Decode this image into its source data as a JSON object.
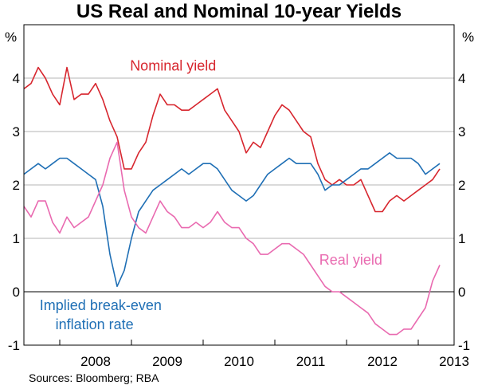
{
  "chart_data": {
    "type": "line",
    "title": "US Real and Nominal 10-year Yields",
    "ylabel_left": "%",
    "ylabel_right": "%",
    "ylim": [
      -1,
      5
    ],
    "yticks": [
      "4",
      "3",
      "2",
      "1",
      "0",
      "-1"
    ],
    "xlim": [
      2007.5,
      2013.5
    ],
    "xticks": [
      "2008",
      "2009",
      "2010",
      "2011",
      "2012",
      "2013"
    ],
    "source": "Sources: Bloomberg; RBA",
    "series": [
      {
        "name": "Nominal yield",
        "label": "Nominal yield",
        "color": "#d7262e",
        "x": [
          2007.5,
          2007.6,
          2007.7,
          2007.8,
          2007.9,
          2008.0,
          2008.1,
          2008.2,
          2008.3,
          2008.4,
          2008.5,
          2008.6,
          2008.7,
          2008.8,
          2008.9,
          2009.0,
          2009.1,
          2009.2,
          2009.3,
          2009.4,
          2009.5,
          2009.6,
          2009.7,
          2009.8,
          2009.9,
          2010.0,
          2010.1,
          2010.2,
          2010.3,
          2010.4,
          2010.5,
          2010.6,
          2010.7,
          2010.8,
          2010.9,
          2011.0,
          2011.1,
          2011.2,
          2011.3,
          2011.4,
          2011.5,
          2011.6,
          2011.7,
          2011.8,
          2011.9,
          2012.0,
          2012.1,
          2012.2,
          2012.3,
          2012.4,
          2012.5,
          2012.6,
          2012.7,
          2012.8,
          2012.9,
          2013.0,
          2013.1,
          2013.2,
          2013.3
        ],
        "values": [
          3.8,
          3.9,
          4.2,
          4.0,
          3.7,
          3.5,
          4.2,
          3.6,
          3.7,
          3.7,
          3.9,
          3.6,
          3.2,
          2.9,
          2.3,
          2.3,
          2.6,
          2.8,
          3.3,
          3.7,
          3.5,
          3.5,
          3.4,
          3.4,
          3.5,
          3.6,
          3.7,
          3.8,
          3.4,
          3.2,
          3.0,
          2.6,
          2.8,
          2.7,
          3.0,
          3.3,
          3.5,
          3.4,
          3.2,
          3.0,
          2.9,
          2.4,
          2.1,
          2.0,
          2.1,
          2.0,
          2.0,
          2.1,
          1.8,
          1.5,
          1.5,
          1.7,
          1.8,
          1.7,
          1.8,
          1.9,
          2.0,
          2.1,
          2.3
        ]
      },
      {
        "name": "Implied break-even inflation rate",
        "label": "Implied break-even",
        "label2": "inflation rate",
        "color": "#1f6fb5",
        "x": [
          2007.5,
          2007.6,
          2007.7,
          2007.8,
          2007.9,
          2008.0,
          2008.1,
          2008.2,
          2008.3,
          2008.4,
          2008.5,
          2008.6,
          2008.7,
          2008.8,
          2008.9,
          2009.0,
          2009.1,
          2009.2,
          2009.3,
          2009.4,
          2009.5,
          2009.6,
          2009.7,
          2009.8,
          2009.9,
          2010.0,
          2010.1,
          2010.2,
          2010.3,
          2010.4,
          2010.5,
          2010.6,
          2010.7,
          2010.8,
          2010.9,
          2011.0,
          2011.1,
          2011.2,
          2011.3,
          2011.4,
          2011.5,
          2011.6,
          2011.7,
          2011.8,
          2011.9,
          2012.0,
          2012.1,
          2012.2,
          2012.3,
          2012.4,
          2012.5,
          2012.6,
          2012.7,
          2012.8,
          2012.9,
          2013.0,
          2013.1,
          2013.2,
          2013.3
        ],
        "values": [
          2.2,
          2.3,
          2.4,
          2.3,
          2.4,
          2.5,
          2.5,
          2.4,
          2.3,
          2.2,
          2.1,
          1.6,
          0.7,
          0.1,
          0.4,
          1.0,
          1.5,
          1.7,
          1.9,
          2.0,
          2.1,
          2.2,
          2.3,
          2.2,
          2.3,
          2.4,
          2.4,
          2.3,
          2.1,
          1.9,
          1.8,
          1.7,
          1.8,
          2.0,
          2.2,
          2.3,
          2.4,
          2.5,
          2.4,
          2.4,
          2.4,
          2.2,
          1.9,
          2.0,
          2.0,
          2.1,
          2.2,
          2.3,
          2.3,
          2.4,
          2.5,
          2.6,
          2.5,
          2.5,
          2.5,
          2.4,
          2.2,
          2.3,
          2.4
        ]
      },
      {
        "name": "Real yield",
        "label": "Real yield",
        "color": "#e96ab0",
        "x": [
          2007.5,
          2007.6,
          2007.7,
          2007.8,
          2007.9,
          2008.0,
          2008.1,
          2008.2,
          2008.3,
          2008.4,
          2008.5,
          2008.6,
          2008.7,
          2008.8,
          2008.9,
          2009.0,
          2009.1,
          2009.2,
          2009.3,
          2009.4,
          2009.5,
          2009.6,
          2009.7,
          2009.8,
          2009.9,
          2010.0,
          2010.1,
          2010.2,
          2010.3,
          2010.4,
          2010.5,
          2010.6,
          2010.7,
          2010.8,
          2010.9,
          2011.0,
          2011.1,
          2011.2,
          2011.3,
          2011.4,
          2011.5,
          2011.6,
          2011.7,
          2011.8,
          2011.9,
          2012.0,
          2012.1,
          2012.2,
          2012.3,
          2012.4,
          2012.5,
          2012.6,
          2012.7,
          2012.8,
          2012.9,
          2013.0,
          2013.1,
          2013.2,
          2013.3
        ],
        "values": [
          1.6,
          1.4,
          1.7,
          1.7,
          1.3,
          1.1,
          1.4,
          1.2,
          1.3,
          1.4,
          1.7,
          2.0,
          2.5,
          2.8,
          1.9,
          1.4,
          1.2,
          1.1,
          1.4,
          1.7,
          1.5,
          1.4,
          1.2,
          1.2,
          1.3,
          1.2,
          1.3,
          1.5,
          1.3,
          1.2,
          1.2,
          1.0,
          0.9,
          0.7,
          0.7,
          0.8,
          0.9,
          0.9,
          0.8,
          0.7,
          0.5,
          0.3,
          0.1,
          0.0,
          0.0,
          -0.1,
          -0.2,
          -0.3,
          -0.4,
          -0.6,
          -0.7,
          -0.8,
          -0.8,
          -0.7,
          -0.7,
          -0.5,
          -0.3,
          0.2,
          0.5
        ]
      }
    ]
  }
}
